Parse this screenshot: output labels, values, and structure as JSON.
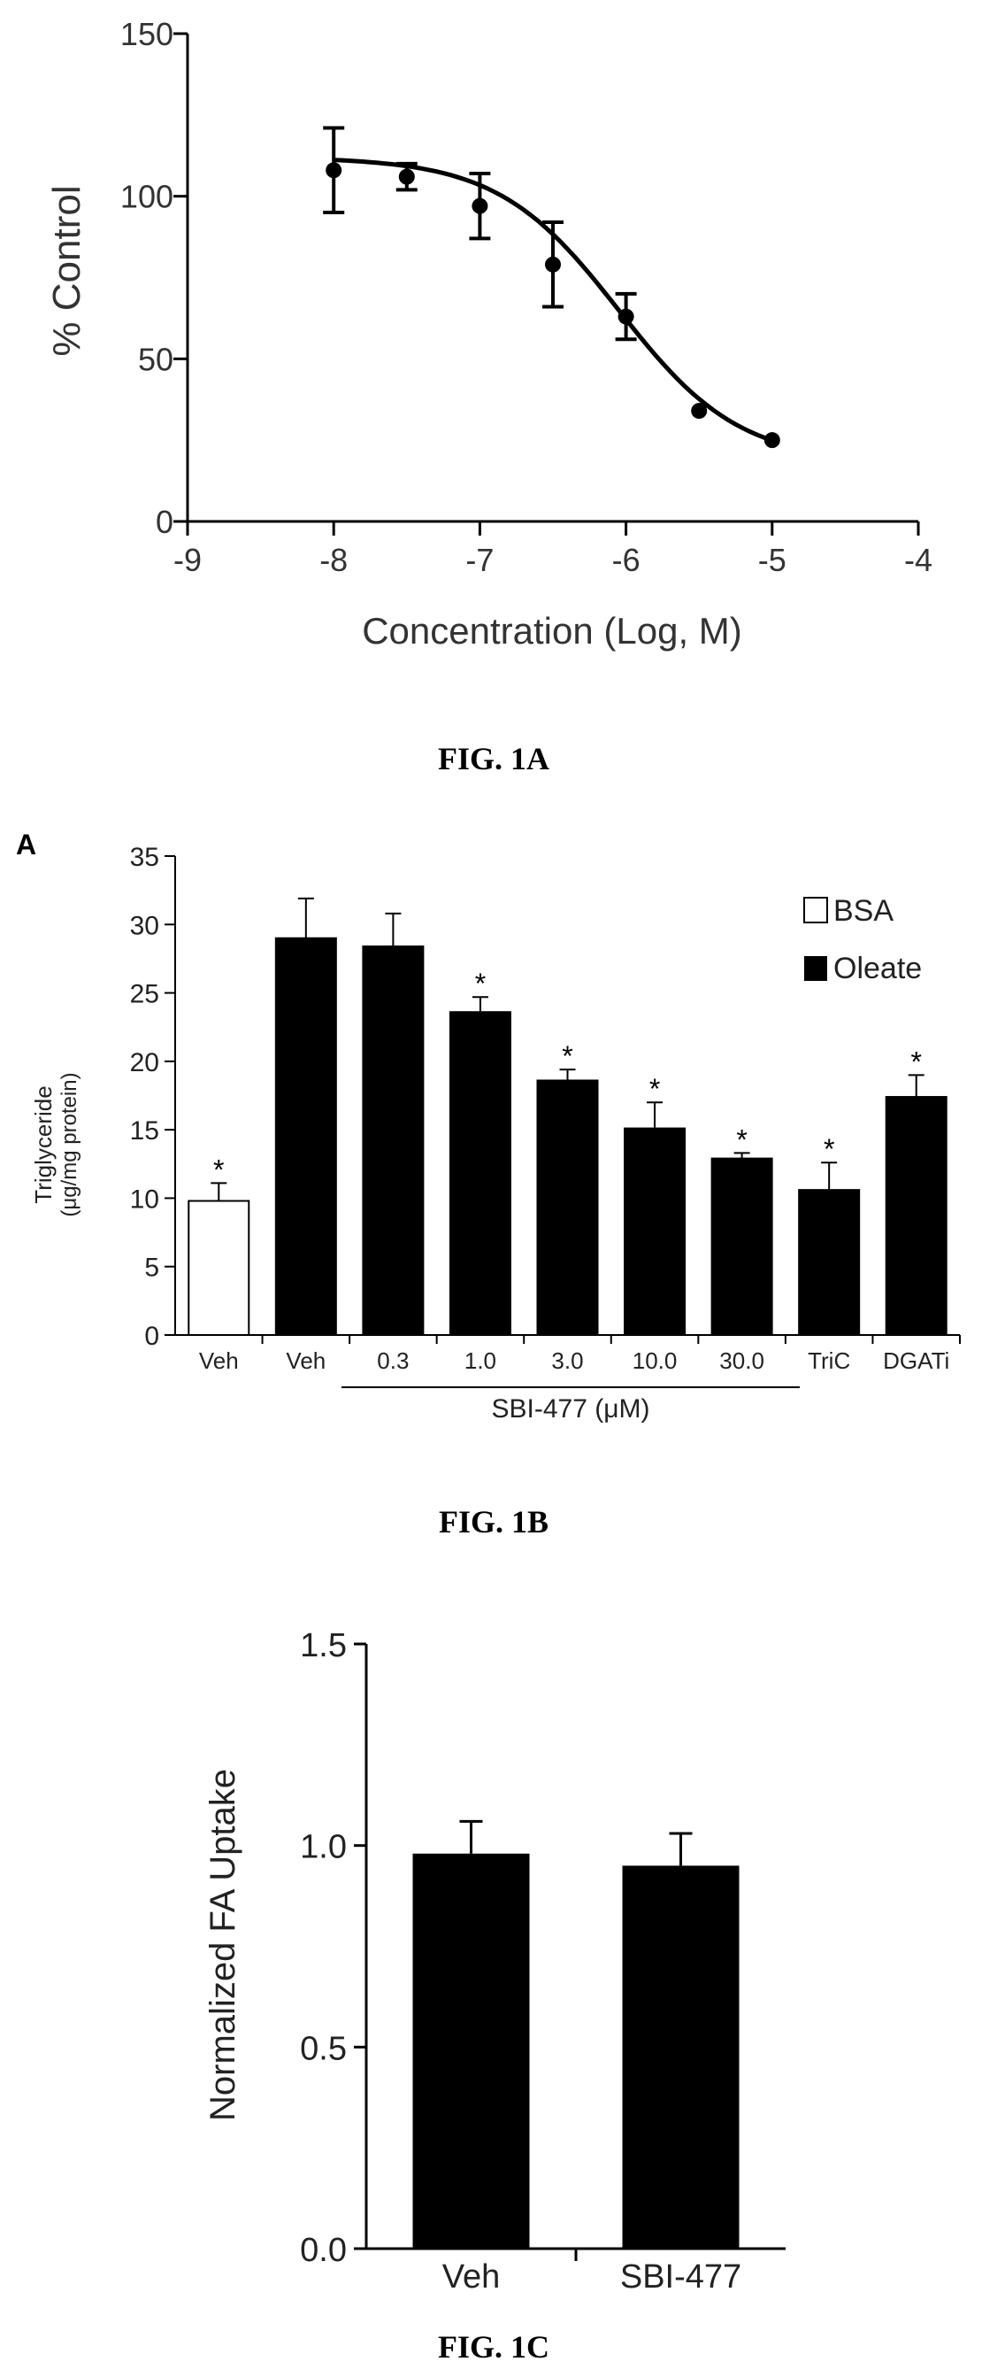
{
  "figures": {
    "fig1a_caption": "FIG. 1A",
    "fig1b_caption": "FIG. 1B",
    "fig1c_caption": "FIG. 1C",
    "fig1b_panel_letter": "A"
  },
  "chart_data": [
    {
      "id": "fig1a",
      "type": "scatter",
      "xlabel": "Concentration (Log, M)",
      "ylabel": "% Control",
      "xlim": [
        -9,
        -4
      ],
      "ylim": [
        0,
        150
      ],
      "x_ticks": [
        -9,
        -8,
        -7,
        -6,
        -5,
        -4
      ],
      "x_tick_labels": [
        "-9",
        "-8",
        "-7",
        "-6",
        "-5",
        "-4"
      ],
      "y_ticks": [
        0,
        50,
        100,
        150
      ],
      "y_tick_labels": [
        "0",
        "50",
        "100",
        "150"
      ],
      "points": [
        {
          "x": -8.0,
          "y": 108,
          "err": 13
        },
        {
          "x": -7.5,
          "y": 106,
          "err": 4
        },
        {
          "x": -7.0,
          "y": 97,
          "err": 10
        },
        {
          "x": -6.5,
          "y": 79,
          "err": 13
        },
        {
          "x": -6.0,
          "y": 63,
          "err": 7
        },
        {
          "x": -5.5,
          "y": 34,
          "err": 0
        },
        {
          "x": -5.0,
          "y": 25,
          "err": 0
        }
      ],
      "fit_curve": true,
      "grid": false
    },
    {
      "id": "fig1b",
      "type": "bar",
      "ylabel": "Triglyceride",
      "ylabel_units": "(μg/mg protein)",
      "ylim": [
        0,
        35
      ],
      "y_ticks": [
        0,
        5,
        10,
        15,
        20,
        25,
        30,
        35
      ],
      "y_tick_labels": [
        "0",
        "5",
        "10",
        "15",
        "20",
        "25",
        "30",
        "35"
      ],
      "categories": [
        "Veh",
        "Veh",
        "0.3",
        "1.0",
        "3.0",
        "10.0",
        "30.0",
        "TriC",
        "DGATi"
      ],
      "values": [
        9.8,
        29.0,
        28.4,
        23.6,
        18.6,
        15.1,
        12.9,
        10.6,
        17.4
      ],
      "errors": [
        1.3,
        2.9,
        2.4,
        1.1,
        0.8,
        1.9,
        0.4,
        2.0,
        1.6
      ],
      "fill": [
        "BSA",
        "Oleate",
        "Oleate",
        "Oleate",
        "Oleate",
        "Oleate",
        "Oleate",
        "Oleate",
        "Oleate"
      ],
      "significant": [
        true,
        false,
        false,
        true,
        true,
        true,
        true,
        true,
        true
      ],
      "star_label": "*",
      "group_label": "SBI-477 (μM)",
      "group_range": [
        2,
        6
      ],
      "legend": [
        {
          "name": "BSA",
          "fill": "#ffffff"
        },
        {
          "name": "Oleate",
          "fill": "#000000"
        }
      ],
      "legend_position": "top-right",
      "grid": false
    },
    {
      "id": "fig1c",
      "type": "bar",
      "ylabel": "Normalized FA Uptake",
      "ylim": [
        0,
        1.5
      ],
      "y_ticks": [
        0,
        0.5,
        1.0,
        1.5
      ],
      "y_tick_labels": [
        "0.0",
        "0.5",
        "1.0",
        "1.5"
      ],
      "categories": [
        "Veh",
        "SBI-477"
      ],
      "values": [
        0.98,
        0.95
      ],
      "errors": [
        0.08,
        0.08
      ],
      "grid": false
    }
  ]
}
